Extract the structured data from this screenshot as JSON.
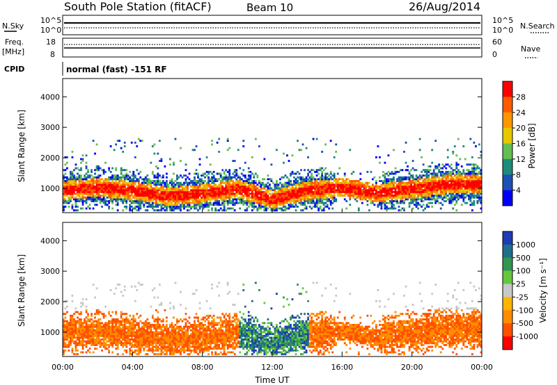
{
  "header": {
    "station": "South Pole Station (fitACF)",
    "beam": "Beam 10",
    "date": "26/Aug/2014"
  },
  "noise_panel": {
    "left_label": "N.Sky",
    "right_label": "N.Search",
    "tick_top": "10^5",
    "tick_bottom": "10^0"
  },
  "freq_panel": {
    "left_label_1": "Freq.",
    "left_label_2": "[MHz]",
    "right_label": "Nave",
    "left_ticks": [
      "18",
      "8"
    ],
    "right_ticks": [
      "60",
      "0"
    ]
  },
  "cpid": {
    "label": "CPID",
    "value": "normal (fast) -151 RF"
  },
  "chart_data": [
    {
      "type": "heatmap",
      "name": "power",
      "ylabel": "Slant Range [km]",
      "xlabel": "",
      "xlim": [
        0,
        24
      ],
      "ylim": [
        200,
        4600
      ],
      "y_ticks": [
        1000,
        2000,
        3000,
        4000
      ],
      "colorbar_label": "Power [dB]",
      "colorbar_ticks": [
        "28",
        "24",
        "20",
        "16",
        "12",
        "8",
        "4"
      ],
      "colorbar_colors": [
        "#ff0000",
        "#ff5a00",
        "#ff9600",
        "#e6c800",
        "#64be50",
        "#1e8c78",
        "#1e50b4",
        "#0000ff"
      ],
      "core_range_km": [
        [
          0,
          900
        ],
        [
          2,
          1000
        ],
        [
          4,
          900
        ],
        [
          6,
          700
        ],
        [
          8,
          800
        ],
        [
          10,
          950
        ],
        [
          12,
          600
        ],
        [
          14,
          900
        ],
        [
          16,
          1000
        ],
        [
          18,
          800
        ],
        [
          20,
          950
        ],
        [
          22,
          1100
        ],
        [
          24,
          1100
        ]
      ]
    },
    {
      "type": "heatmap",
      "name": "velocity",
      "ylabel": "Slant Range [km]",
      "xlabel": "Time UT",
      "xlim": [
        0,
        24
      ],
      "ylim": [
        200,
        4600
      ],
      "y_ticks": [
        1000,
        2000,
        3000,
        4000
      ],
      "x_ticks": [
        "00:00",
        "04:00",
        "08:00",
        "12:00",
        "16:00",
        "20:00",
        "00:00"
      ],
      "colorbar_label": "Velocity [m s⁻¹]",
      "colorbar_ticks": [
        "1000",
        "500",
        "100",
        "25",
        "-25",
        "-100",
        "-500",
        "-1000"
      ],
      "colorbar_colors": [
        "#1e3cb4",
        "#1e6e8c",
        "#329650",
        "#64c83c",
        "#c8c8c8",
        "#ffb400",
        "#ff8c00",
        "#ff5000",
        "#ff0000"
      ]
    }
  ]
}
